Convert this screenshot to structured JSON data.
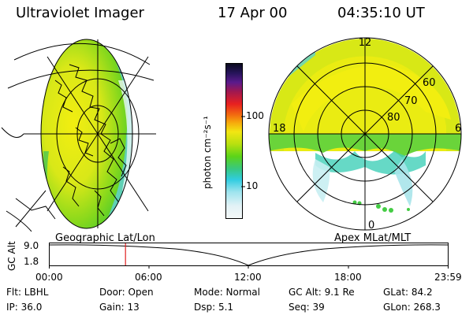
{
  "header": {
    "instrument": "Ultraviolet Imager",
    "date": "17 Apr 00",
    "time": "04:35:10 UT"
  },
  "colorbar": {
    "unit_label": "photon cm⁻²s⁻¹",
    "ticks": [
      "100",
      "10"
    ]
  },
  "polar_map": {
    "mlt_labels": [
      "12",
      "18",
      "6",
      "0"
    ],
    "mlat_labels": [
      "60",
      "70",
      "80"
    ]
  },
  "timeline": {
    "left_title": "Geographic Lat/Lon",
    "right_title": "Apex MLat/MLT",
    "axis_label": "GC Alt",
    "y_ticks": [
      "9.0",
      "1.8"
    ],
    "x_ticks": [
      "00:00",
      "06:00",
      "12:00",
      "18:00",
      "23:59"
    ],
    "current_time_hours": 4.586
  },
  "info": {
    "filter": "Flt: LBHL",
    "door": "Door: Open",
    "mode": "Mode: Normal",
    "gc_alt": "GC Alt: 9.1 Re",
    "glat": "GLat:  84.2",
    "ip": "IP: 36.0",
    "gain": "Gain: 13",
    "dsp": "Dsp:    5.1",
    "seq": "Seq: 39",
    "glon": "GLon: 268.3"
  }
}
